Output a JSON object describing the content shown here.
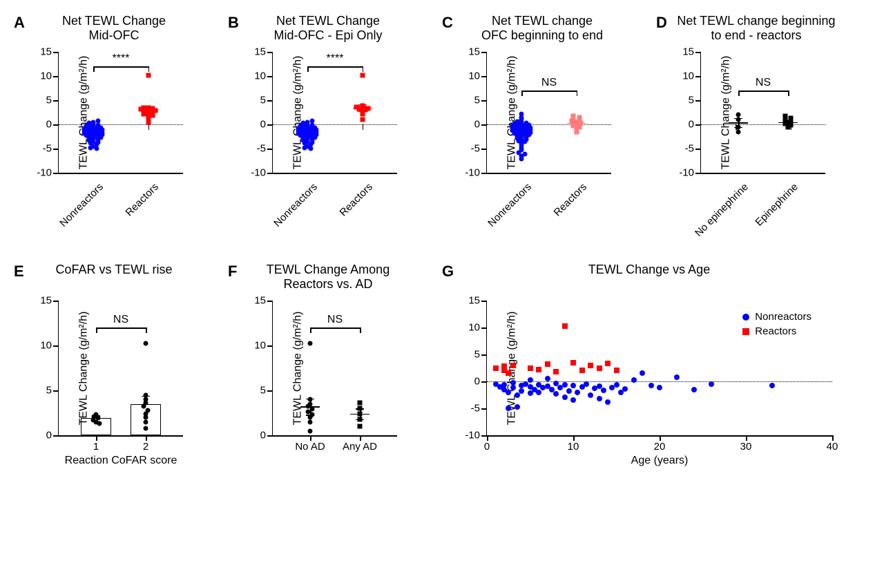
{
  "colors": {
    "blue": "#0402ff",
    "red": "#ff0303",
    "red_light": "#ff7b7b",
    "black": "#000000",
    "white": "#ffffff"
  },
  "ylabel": "TEWL Change (g/m²/h)",
  "panelA": {
    "letter": "A",
    "title": "Net TEWL Change\nMid-OFC",
    "ylim": [
      -10,
      15
    ],
    "yticks": [
      -10,
      -5,
      0,
      5,
      10,
      15
    ],
    "cats": [
      "Nonreactors",
      "Reactors"
    ],
    "sig": "****",
    "g1": {
      "color": "blue",
      "marker": "circle",
      "x": 0.28,
      "mean": -0.9,
      "sem": 0.3,
      "pts": [
        -0.3,
        -0.5,
        -0.6,
        -0.7,
        -0.7,
        -0.8,
        -0.8,
        -0.8,
        -0.9,
        -0.9,
        -0.9,
        -1.0,
        -1.0,
        -1.0,
        -1.1,
        -1.1,
        -1.2,
        -1.2,
        -1.3,
        -1.3,
        -1.4,
        -1.4,
        -1.5,
        -1.5,
        -1.6,
        -1.6,
        -1.7,
        -1.8,
        -1.8,
        -1.9,
        -2.0,
        -2.0,
        -2.1,
        -2.2,
        -2.3,
        -2.4,
        -2.5,
        -2.6,
        -2.7,
        -2.8,
        -3.0,
        -3.1,
        -3.3,
        -3.5,
        -3.7,
        -3.9,
        -4.2,
        -4.6,
        -4.8,
        -5.0,
        0.1,
        0.3,
        0.5,
        0.7,
        -0.1,
        -0.2
      ]
    },
    "g2": {
      "color": "red",
      "marker": "square",
      "x": 0.72,
      "mean": 3.0,
      "sem": 0.6,
      "pts": [
        10.2,
        3.5,
        3.4,
        3.3,
        3.2,
        3.1,
        3.0,
        2.9,
        2.8,
        2.6,
        2.4,
        2.2,
        2.1,
        1.9,
        1.5,
        0.5
      ]
    }
  },
  "panelB": {
    "letter": "B",
    "title": "Net TEWL Change\nMid-OFC - Epi Only",
    "ylim": [
      -10,
      15
    ],
    "yticks": [
      -10,
      -5,
      0,
      5,
      10,
      15
    ],
    "cats": [
      "Nonreactors",
      "Reactors"
    ],
    "sig": "****",
    "g1": {
      "color": "blue",
      "marker": "circle",
      "x": 0.28,
      "mean": -0.9,
      "sem": 0.3,
      "pts": [
        -0.3,
        -0.5,
        -0.6,
        -0.7,
        -0.7,
        -0.8,
        -0.8,
        -0.8,
        -0.9,
        -0.9,
        -0.9,
        -1.0,
        -1.0,
        -1.0,
        -1.1,
        -1.1,
        -1.2,
        -1.2,
        -1.3,
        -1.3,
        -1.4,
        -1.4,
        -1.5,
        -1.5,
        -1.6,
        -1.6,
        -1.7,
        -1.8,
        -1.8,
        -1.9,
        -2.0,
        -2.0,
        -2.1,
        -2.2,
        -2.3,
        -2.4,
        -2.5,
        -2.6,
        -2.7,
        -2.8,
        -3.0,
        -3.1,
        -3.3,
        -3.5,
        -3.7,
        -3.9,
        -4.2,
        -4.6,
        -4.8,
        -5.0,
        0.1,
        0.3,
        0.5,
        0.7,
        -0.1,
        -0.2
      ]
    },
    "g2": {
      "color": "red",
      "marker": "square",
      "x": 0.72,
      "mean": 3.5,
      "sem": 0.7,
      "pts": [
        10.2,
        3.8,
        3.6,
        3.5,
        3.4,
        3.3,
        3.2,
        3.0,
        2.7,
        2.2,
        1.0
      ]
    }
  },
  "panelC": {
    "letter": "C",
    "title": "Net TEWL change\nOFC beginning to end",
    "ylim": [
      -10,
      15
    ],
    "yticks": [
      -10,
      -5,
      0,
      5,
      10,
      15
    ],
    "cats": [
      "Nonreactors",
      "Reactors"
    ],
    "sig": "NS",
    "g1": {
      "color": "blue",
      "marker": "circle",
      "x": 0.28,
      "mean": -1.2,
      "sem": 0.4,
      "pts": [
        2.1,
        1.5,
        1.0,
        0.6,
        0.4,
        0.3,
        0.2,
        0.1,
        0.0,
        -0.1,
        -0.2,
        -0.3,
        -0.3,
        -0.4,
        -0.5,
        -0.5,
        -0.6,
        -0.7,
        -0.7,
        -0.8,
        -0.8,
        -0.9,
        -1.0,
        -1.0,
        -1.1,
        -1.2,
        -1.2,
        -1.3,
        -1.4,
        -1.4,
        -1.5,
        -1.6,
        -1.7,
        -1.8,
        -1.9,
        -2.0,
        -2.1,
        -2.2,
        -2.4,
        -2.5,
        -2.7,
        -2.8,
        -3.0,
        -3.2,
        -3.4,
        -3.6,
        -3.9,
        -4.3,
        -4.8,
        -5.3,
        -5.9,
        -6.2,
        -6.5,
        -7.1
      ]
    },
    "g2": {
      "color": "red_light",
      "marker": "square",
      "x": 0.72,
      "mean": 0.3,
      "sem": 0.5,
      "pts": [
        1.7,
        1.5,
        1.2,
        1.0,
        0.7,
        0.5,
        0.3,
        0.0,
        -0.3,
        -0.6,
        -1.0,
        -1.5
      ]
    }
  },
  "panelD": {
    "letter": "D",
    "title": "Net TEWL change beginning\nto end - reactors",
    "ylim": [
      -10,
      15
    ],
    "yticks": [
      -10,
      -5,
      0,
      5,
      10,
      15
    ],
    "cats": [
      "No epinephrine",
      "Epinephrine"
    ],
    "sig": "NS",
    "g1": {
      "color": "black",
      "marker": "circle",
      "x": 0.3,
      "mean": 0.4,
      "sem": 0.9,
      "pts": [
        2.0,
        1.0,
        -0.5,
        -1.5
      ]
    },
    "g2": {
      "color": "black",
      "marker": "square",
      "x": 0.7,
      "mean": 0.5,
      "sem": 0.4,
      "pts": [
        1.7,
        1.3,
        1.0,
        0.8,
        0.5,
        0.2,
        -0.2,
        -0.6
      ]
    }
  },
  "panelE": {
    "letter": "E",
    "title": "CoFAR vs TEWL rise",
    "ylim": [
      0,
      15
    ],
    "yticks": [
      0,
      5,
      10,
      15
    ],
    "cats": [
      "1",
      "2"
    ],
    "xlabel": "Reaction CoFAR score",
    "sig": "NS",
    "bars": [
      {
        "x": 0.3,
        "h": 1.9,
        "sem": 0.3,
        "pts": [
          2.3,
          2.1,
          1.9,
          1.7,
          1.5,
          1.3
        ]
      },
      {
        "x": 0.7,
        "h": 3.5,
        "sem": 0.9,
        "pts": [
          10.2,
          4.5,
          4.0,
          3.6,
          3.2,
          2.8,
          2.4,
          2.0,
          1.5,
          0.8
        ]
      }
    ]
  },
  "panelF": {
    "letter": "F",
    "title": "TEWL Change Among\nReactors vs. AD",
    "ylim": [
      0,
      15
    ],
    "yticks": [
      0,
      5,
      10,
      15
    ],
    "cats": [
      "No AD",
      "Any AD"
    ],
    "sig": "NS",
    "g1": {
      "color": "black",
      "marker": "circle",
      "x": 0.3,
      "mean": 3.2,
      "sem": 0.9,
      "pts": [
        10.2,
        4.0,
        3.5,
        3.2,
        2.9,
        2.6,
        2.3,
        2.0,
        1.5,
        0.5
      ]
    },
    "g2": {
      "color": "black",
      "marker": "square",
      "x": 0.7,
      "mean": 2.4,
      "sem": 0.6,
      "pts": [
        3.6,
        3.0,
        2.4,
        1.8,
        1.0
      ]
    }
  },
  "panelG": {
    "letter": "G",
    "title": "TEWL Change vs Age",
    "ylim": [
      -10,
      15
    ],
    "yticks": [
      -10,
      -5,
      0,
      5,
      10,
      15
    ],
    "xlim": [
      0,
      40
    ],
    "xticks": [
      0,
      10,
      20,
      30,
      40
    ],
    "xlabel": "Age (years)",
    "legend": [
      {
        "label": "Nonreactors",
        "color": "blue",
        "marker": "circle"
      },
      {
        "label": "Reactors",
        "color": "red",
        "marker": "square"
      }
    ],
    "nonreactors": {
      "color": "blue",
      "marker": "circle",
      "pts": [
        [
          1,
          -0.5
        ],
        [
          1.5,
          -1.0
        ],
        [
          2,
          -0.7
        ],
        [
          2,
          -1.5
        ],
        [
          2.5,
          -2.0
        ],
        [
          2.5,
          -5.0
        ],
        [
          3,
          -0.3
        ],
        [
          3,
          -1.2
        ],
        [
          3.5,
          -2.5
        ],
        [
          3.5,
          -4.8
        ],
        [
          4,
          -0.8
        ],
        [
          4,
          -1.8
        ],
        [
          4.5,
          -0.5
        ],
        [
          5,
          0.2
        ],
        [
          5,
          -1.0
        ],
        [
          5,
          -2.2
        ],
        [
          5.5,
          -1.5
        ],
        [
          6,
          -0.6
        ],
        [
          6,
          -2.0
        ],
        [
          6.5,
          -1.2
        ],
        [
          7,
          0.5
        ],
        [
          7,
          -0.9
        ],
        [
          7.5,
          -1.6
        ],
        [
          8,
          -0.4
        ],
        [
          8,
          -2.3
        ],
        [
          8.5,
          -1.1
        ],
        [
          9,
          -3.0
        ],
        [
          9,
          -0.7
        ],
        [
          9.5,
          -1.8
        ],
        [
          10,
          -0.8
        ],
        [
          10,
          -3.5
        ],
        [
          10.5,
          -2.1
        ],
        [
          11,
          -1.0
        ],
        [
          11.5,
          -0.5
        ],
        [
          12,
          -2.6
        ],
        [
          12.5,
          -1.3
        ],
        [
          13,
          -3.2
        ],
        [
          13,
          -0.9
        ],
        [
          13.5,
          -1.7
        ],
        [
          14,
          -3.8
        ],
        [
          14.5,
          -1.2
        ],
        [
          15,
          -0.6
        ],
        [
          15.5,
          -2.0
        ],
        [
          16,
          -1.4
        ],
        [
          17,
          0.3
        ],
        [
          18,
          1.5
        ],
        [
          19,
          -0.8
        ],
        [
          20,
          -1.1
        ],
        [
          22,
          0.8
        ],
        [
          24,
          -1.5
        ],
        [
          26,
          -0.5
        ],
        [
          33,
          -0.8
        ]
      ]
    },
    "reactors": {
      "color": "red",
      "marker": "square",
      "pts": [
        [
          1,
          2.5
        ],
        [
          2,
          2.0
        ],
        [
          2,
          2.8
        ],
        [
          2.5,
          1.5
        ],
        [
          3,
          3.0
        ],
        [
          5,
          2.5
        ],
        [
          6,
          2.2
        ],
        [
          7,
          3.2
        ],
        [
          8,
          1.8
        ],
        [
          9,
          10.2
        ],
        [
          10,
          3.4
        ],
        [
          11,
          2.0
        ],
        [
          12,
          3.0
        ],
        [
          13,
          2.5
        ],
        [
          14,
          3.3
        ],
        [
          15,
          2.0
        ]
      ]
    }
  }
}
